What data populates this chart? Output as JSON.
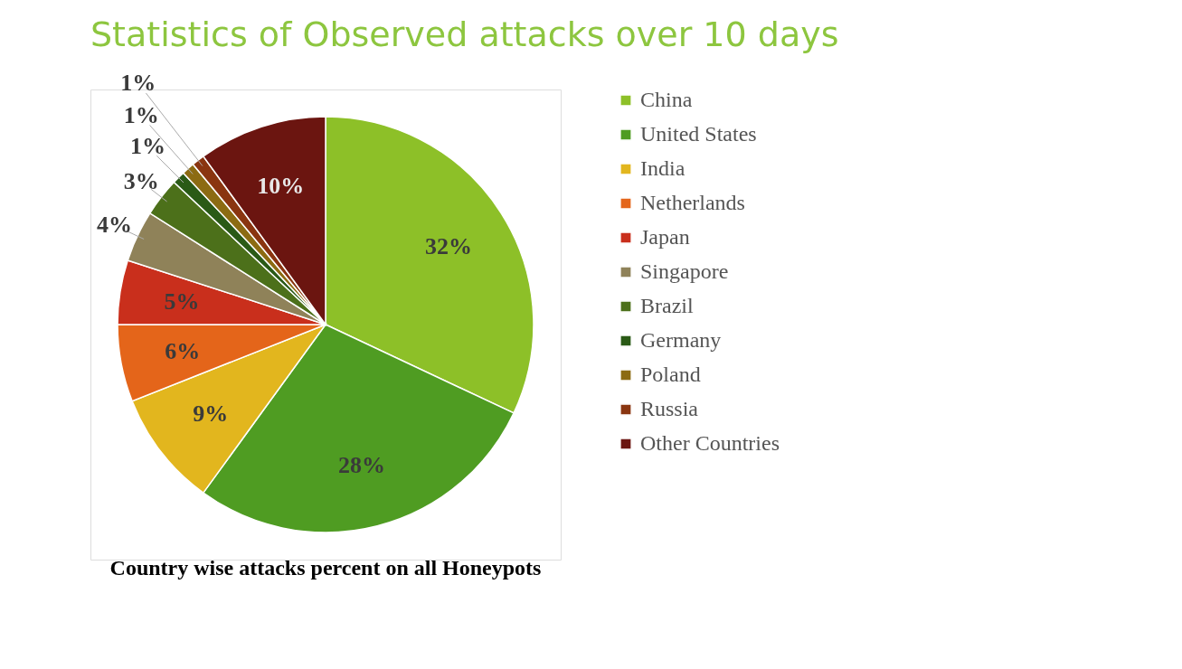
{
  "chart_data": {
    "type": "pie",
    "title": "Statistics of Observed attacks over 10 days",
    "categories": [
      "China",
      "United States",
      "India",
      "Netherlands",
      "Japan",
      "Singapore",
      "Brazil",
      "Germany",
      "Poland",
      "Russia",
      "Other Countries"
    ],
    "values": [
      32,
      28,
      9,
      6,
      5,
      4,
      3,
      1,
      1,
      1,
      10
    ],
    "value_labels": [
      "32%",
      "28%",
      "9%",
      "6%",
      "5%",
      "4%",
      "3%",
      "1%",
      "1%",
      "1%",
      "10%"
    ],
    "colors": [
      "#8dc028",
      "#4f9c22",
      "#e2b61e",
      "#e4651a",
      "#c92f1c",
      "#8f8259",
      "#4c701a",
      "#2a5a16",
      "#8c6b12",
      "#8a3510",
      "#6b1510"
    ],
    "legend": "right",
    "annotations": [
      "Country wise attacks percent on all Honeypots"
    ]
  }
}
